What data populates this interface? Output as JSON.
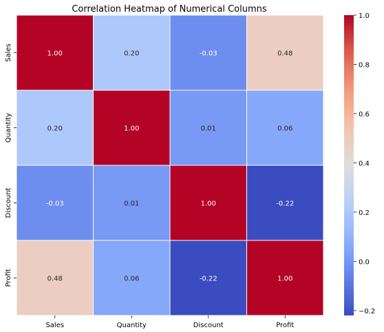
{
  "chart_data": {
    "type": "heatmap",
    "title": "Correlation Heatmap of Numerical Columns",
    "xlabel": "",
    "ylabel": "",
    "x_categories": [
      "Sales",
      "Quantity",
      "Discount",
      "Profit"
    ],
    "y_categories": [
      "Sales",
      "Quantity",
      "Discount",
      "Profit"
    ],
    "values": [
      [
        1.0,
        0.2,
        -0.03,
        0.48
      ],
      [
        0.2,
        1.0,
        0.01,
        0.06
      ],
      [
        -0.03,
        0.01,
        1.0,
        -0.22
      ],
      [
        0.48,
        0.06,
        -0.22,
        1.0
      ]
    ],
    "cell_labels": [
      [
        "1.00",
        "0.20",
        "-0.03",
        "0.48"
      ],
      [
        "0.20",
        "1.00",
        "0.01",
        "0.06"
      ],
      [
        "-0.03",
        "0.01",
        "1.00",
        "-0.22"
      ],
      [
        "0.48",
        "0.06",
        "-0.22",
        "1.00"
      ]
    ],
    "colormap": "coolwarm",
    "vmin": -0.22,
    "vmax": 1.0,
    "colorbar_ticks": [
      1.0,
      0.8,
      0.6,
      0.4,
      0.2,
      0.0,
      -0.2
    ],
    "colorbar_tick_labels": [
      "1.0",
      "0.8",
      "0.6",
      "0.4",
      "0.2",
      "0.0",
      "−0.2"
    ],
    "grid": true,
    "legend": "right colorbar"
  }
}
